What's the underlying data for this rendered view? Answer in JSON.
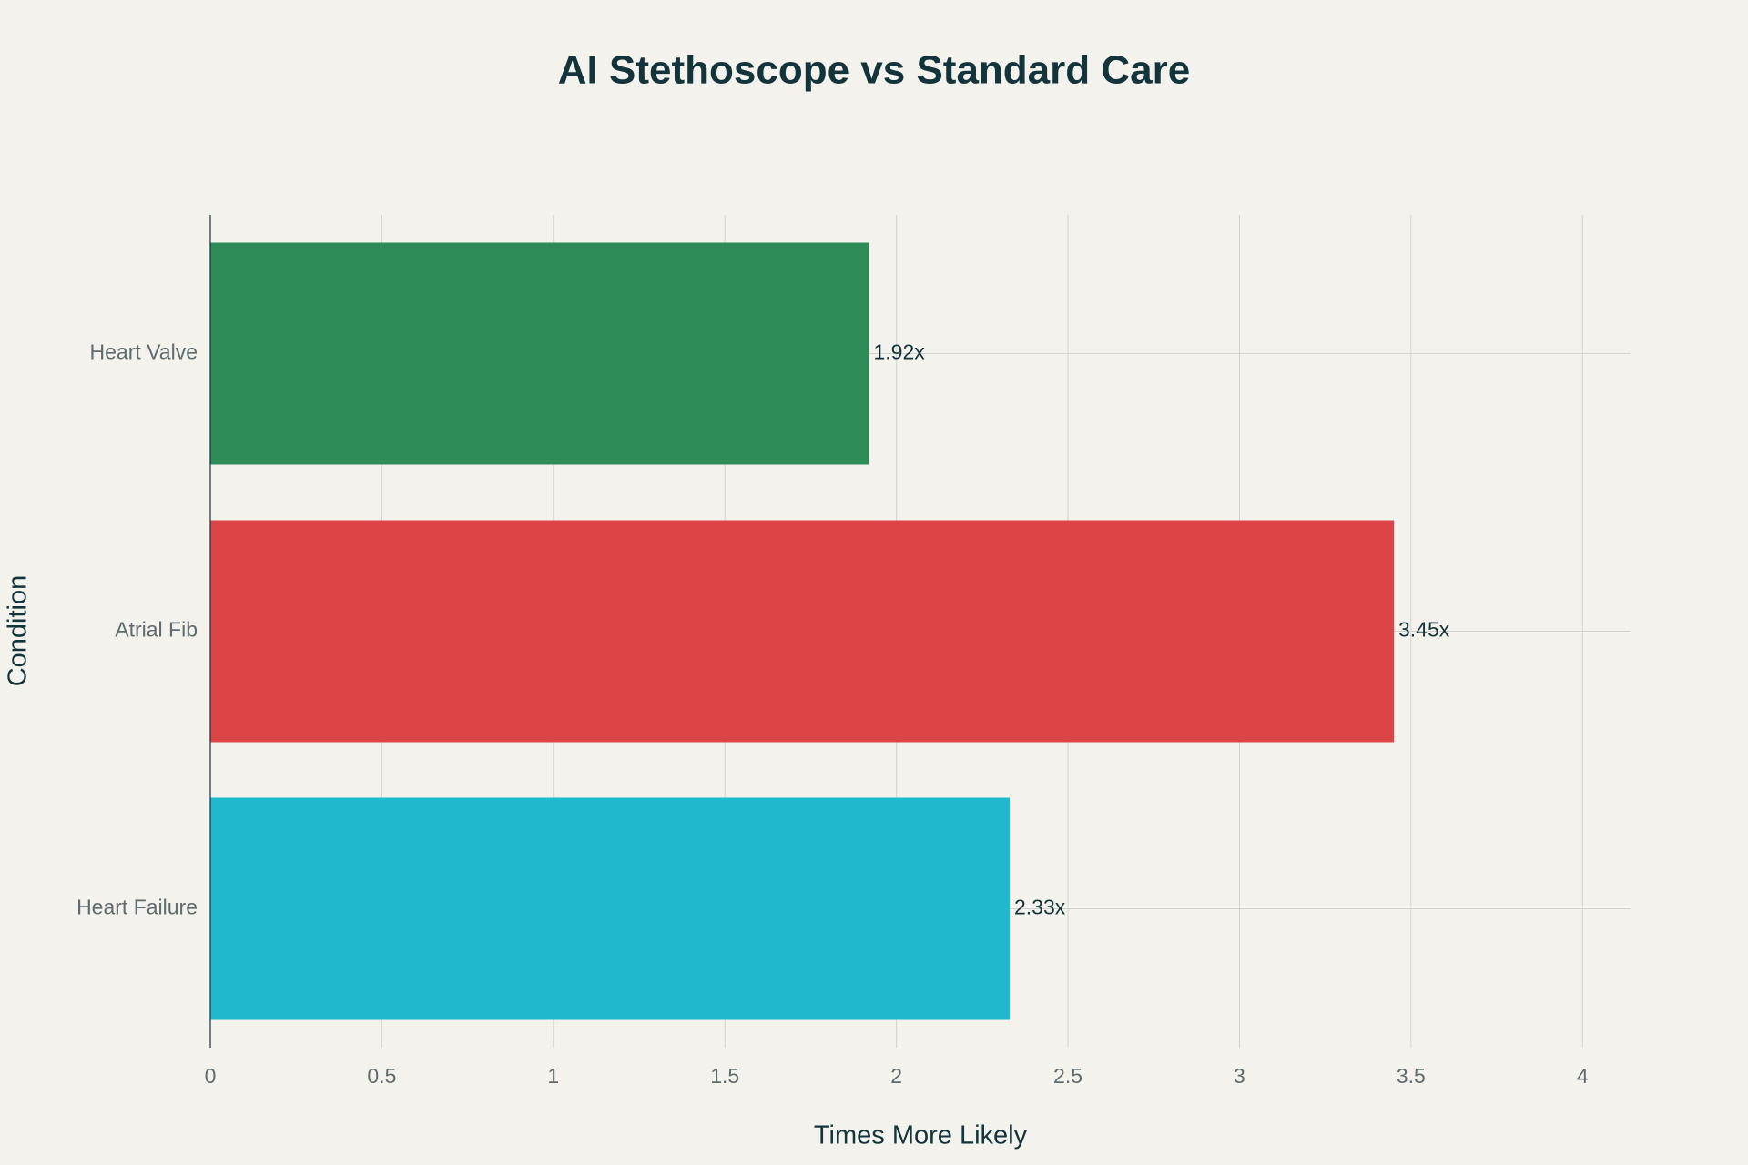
{
  "chart_data": {
    "type": "bar",
    "orientation": "horizontal",
    "title": "AI Stethoscope vs Standard Care",
    "x_label": "Times More Likely",
    "y_label": "Condition",
    "categories": [
      "Heart Valve",
      "Atrial Fib",
      "Heart Failure"
    ],
    "values": [
      1.92,
      3.45,
      2.33
    ],
    "value_labels": [
      "1.92x",
      "3.45x",
      "2.33x"
    ],
    "colors": [
      "#2e8b57",
      "#db4545",
      "#1fb8cd"
    ],
    "xlim": [
      0,
      4.14
    ],
    "xticks": [
      0,
      0.5,
      1,
      1.5,
      2,
      2.5,
      3,
      3.5,
      4
    ],
    "grid": true
  }
}
